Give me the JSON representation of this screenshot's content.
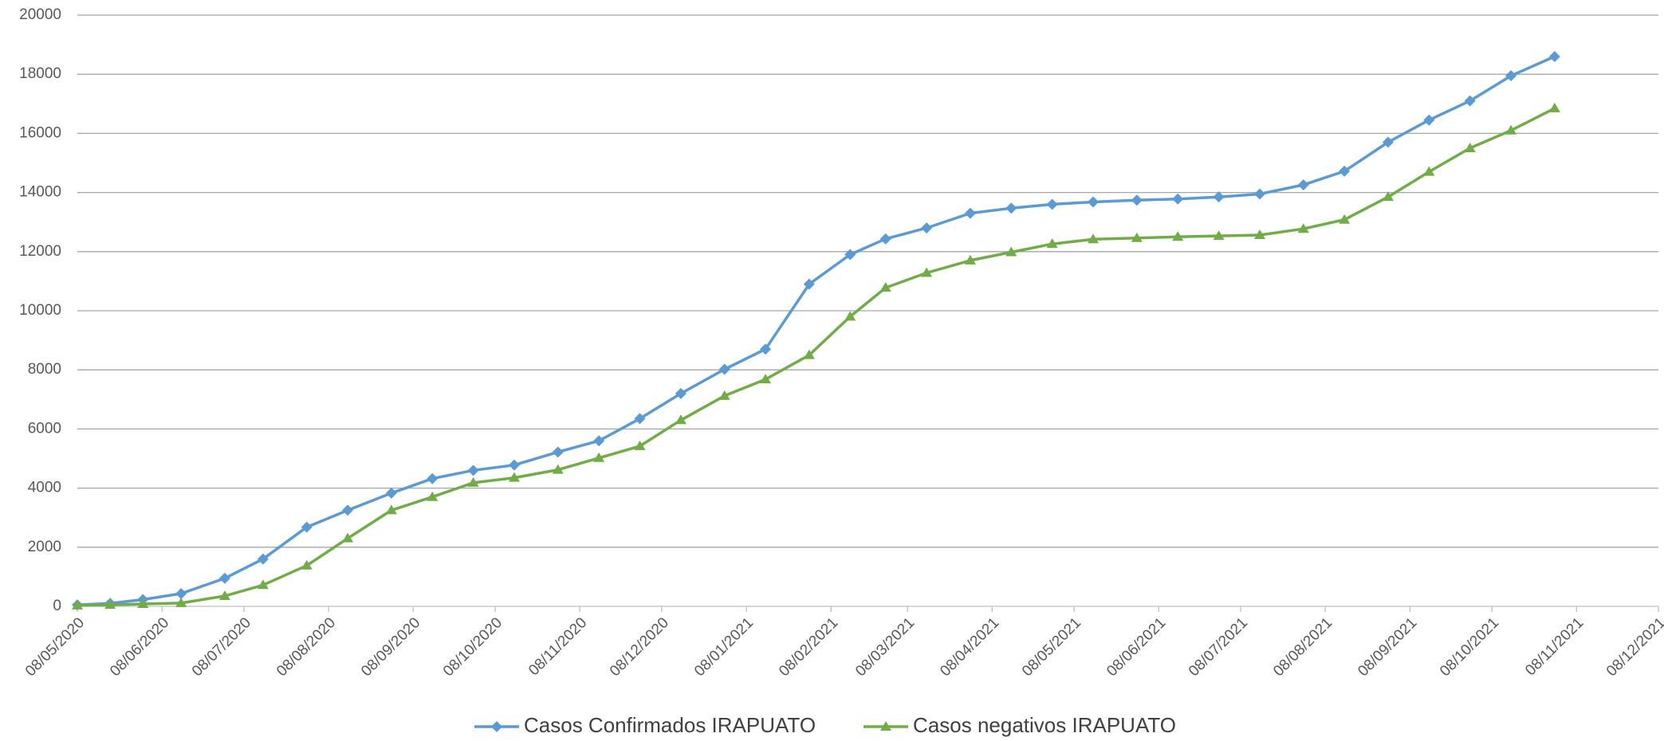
{
  "chart_data": {
    "type": "line",
    "x": [
      "08/05/2020",
      "20/05/2020",
      "01/06/2020",
      "15/06/2020",
      "01/07/2020",
      "15/07/2020",
      "31/07/2020",
      "15/08/2020",
      "31/08/2020",
      "15/09/2020",
      "30/09/2020",
      "15/10/2020",
      "31/10/2020",
      "15/11/2020",
      "30/11/2020",
      "15/12/2020",
      "31/12/2020",
      "15/01/2021",
      "31/01/2021",
      "15/02/2021",
      "28/02/2021",
      "15/03/2021",
      "31/03/2021",
      "15/04/2021",
      "30/04/2021",
      "15/05/2021",
      "31/05/2021",
      "15/06/2021",
      "30/06/2021",
      "15/07/2021",
      "31/07/2021",
      "15/08/2021",
      "31/08/2021",
      "15/09/2021",
      "30/09/2021",
      "15/10/2021",
      "31/10/2021"
    ],
    "series": [
      {
        "name": "Casos Confirmados IRAPUATO",
        "color": "#5b9bd5",
        "marker": "diamond",
        "values": [
          50,
          100,
          230,
          430,
          950,
          1600,
          2680,
          3250,
          3830,
          4320,
          4600,
          4780,
          5220,
          5600,
          6350,
          7200,
          8020,
          8700,
          10900,
          11900,
          12430,
          12800,
          13300,
          13470,
          13600,
          13680,
          13740,
          13780,
          13850,
          13950,
          14260,
          14720,
          15700,
          16450,
          17100,
          17950,
          18600
        ]
      },
      {
        "name": "Casos negativos IRAPUATO",
        "color": "#70ad47",
        "marker": "triangle",
        "values": [
          30,
          50,
          80,
          110,
          350,
          720,
          1380,
          2300,
          3250,
          3700,
          4180,
          4350,
          4620,
          5020,
          5420,
          6300,
          7120,
          7680,
          8500,
          9800,
          10780,
          11280,
          11700,
          11980,
          12260,
          12420,
          12460,
          12500,
          12530,
          12560,
          12770,
          13080,
          13850,
          14700,
          15500,
          16100,
          16850
        ]
      }
    ],
    "xlim": [
      "08/05/2020",
      "08/12/2021"
    ],
    "xticks": [
      "08/05/2020",
      "08/06/2020",
      "08/07/2020",
      "08/08/2020",
      "08/09/2020",
      "08/10/2020",
      "08/11/2020",
      "08/12/2020",
      "08/01/2021",
      "08/02/2021",
      "08/03/2021",
      "08/04/2021",
      "08/05/2021",
      "08/06/2021",
      "08/07/2021",
      "08/08/2021",
      "08/09/2021",
      "08/10/2021",
      "08/11/2021",
      "08/12/2021"
    ],
    "ylim": [
      0,
      20000
    ],
    "yticks": [
      0,
      2000,
      4000,
      6000,
      8000,
      10000,
      12000,
      14000,
      16000,
      18000,
      20000
    ],
    "grid": true,
    "legend": "bottom"
  }
}
